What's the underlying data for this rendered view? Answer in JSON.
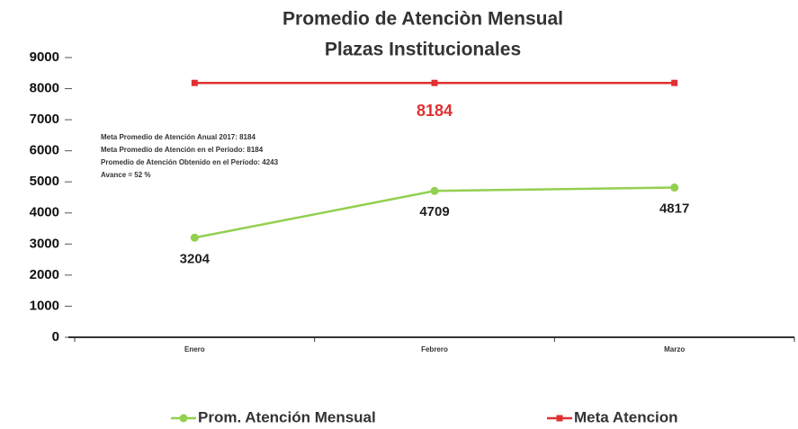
{
  "chart_data": {
    "type": "line",
    "title": "Promedio  de Atenciòn Mensual",
    "subtitle": "Plazas  Institucionales",
    "categories": [
      "Enero",
      "Febrero",
      "Marzo"
    ],
    "series": [
      {
        "name": "Prom. Atención Mensual",
        "color": "#92d050",
        "values": [
          3204,
          4709,
          4817
        ],
        "value_labels": [
          "3204",
          "4709",
          "4817"
        ],
        "label_color": "#222222"
      },
      {
        "name": "Meta Atencion",
        "color": "#e03030",
        "values": [
          8184,
          8184,
          8184
        ],
        "value_labels": [
          null,
          "8184",
          null
        ],
        "label_color": "#e03030"
      }
    ],
    "annotations": [
      "Meta Promedio de Atención Anual 2017: 8184",
      "Meta Promedio de Atención en el Período: 8184",
      "Promedio de Atención Obtenido en el Período: 4243",
      "Avance = 52 %"
    ],
    "ylim": [
      0,
      9000
    ],
    "yticks": [
      0,
      1000,
      2000,
      3000,
      4000,
      5000,
      6000,
      7000,
      8000,
      9000
    ],
    "grid": false,
    "legend": "bottom"
  }
}
